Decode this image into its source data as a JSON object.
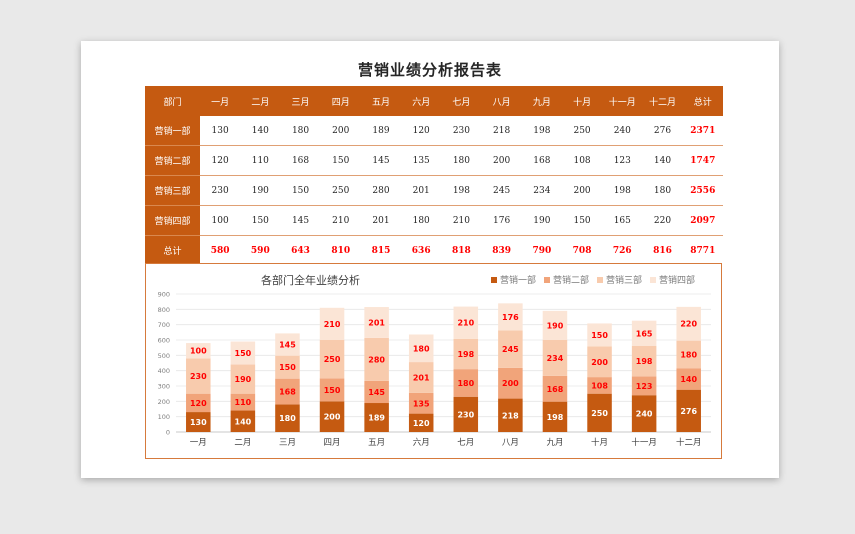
{
  "title": "营销业绩分析报告表",
  "table": {
    "header": [
      "部门",
      "一月",
      "二月",
      "三月",
      "四月",
      "五月",
      "六月",
      "七月",
      "八月",
      "九月",
      "十月",
      "十一月",
      "十二月",
      "总计"
    ],
    "rows": [
      {
        "dept": "营销一部",
        "values": [
          "130",
          "140",
          "180",
          "200",
          "189",
          "120",
          "230",
          "218",
          "198",
          "250",
          "240",
          "276"
        ],
        "total": "2371"
      },
      {
        "dept": "营销二部",
        "values": [
          "120",
          "110",
          "168",
          "150",
          "145",
          "135",
          "180",
          "200",
          "168",
          "108",
          "123",
          "140"
        ],
        "total": "1747"
      },
      {
        "dept": "营销三部",
        "values": [
          "230",
          "190",
          "150",
          "250",
          "280",
          "201",
          "198",
          "245",
          "234",
          "200",
          "198",
          "180"
        ],
        "total": "2556"
      },
      {
        "dept": "营销四部",
        "values": [
          "100",
          "150",
          "145",
          "210",
          "201",
          "180",
          "210",
          "176",
          "190",
          "150",
          "165",
          "220"
        ],
        "total": "2097"
      },
      {
        "dept": "总计",
        "values": [
          "580",
          "590",
          "643",
          "810",
          "815",
          "636",
          "818",
          "839",
          "790",
          "708",
          "726",
          "816"
        ],
        "total": "8771"
      }
    ]
  },
  "chart_data": {
    "type": "bar",
    "stacked": true,
    "title": "各部门全年业绩分析",
    "categories": [
      "一月",
      "二月",
      "三月",
      "四月",
      "五月",
      "六月",
      "七月",
      "八月",
      "九月",
      "十月",
      "十一月",
      "十二月"
    ],
    "series": [
      {
        "name": "营销一部",
        "values": [
          130,
          140,
          180,
          200,
          189,
          120,
          230,
          218,
          198,
          250,
          240,
          276
        ],
        "color": "#c55a11"
      },
      {
        "name": "营销二部",
        "values": [
          120,
          110,
          168,
          150,
          145,
          135,
          180,
          200,
          168,
          108,
          123,
          140
        ],
        "color": "#f1a47a"
      },
      {
        "name": "营销三部",
        "values": [
          230,
          190,
          150,
          250,
          280,
          201,
          198,
          245,
          234,
          200,
          198,
          180
        ],
        "color": "#f8cbad"
      },
      {
        "name": "营销四部",
        "values": [
          100,
          150,
          145,
          210,
          201,
          180,
          210,
          176,
          190,
          150,
          165,
          220
        ],
        "color": "#fbe5d6"
      }
    ],
    "yticks": [
      0,
      100,
      200,
      300,
      400,
      500,
      600,
      700,
      800,
      900
    ],
    "ylim": [
      0,
      900
    ],
    "legend_position": "top-right",
    "grid": true,
    "label_color": "#ff0000"
  }
}
